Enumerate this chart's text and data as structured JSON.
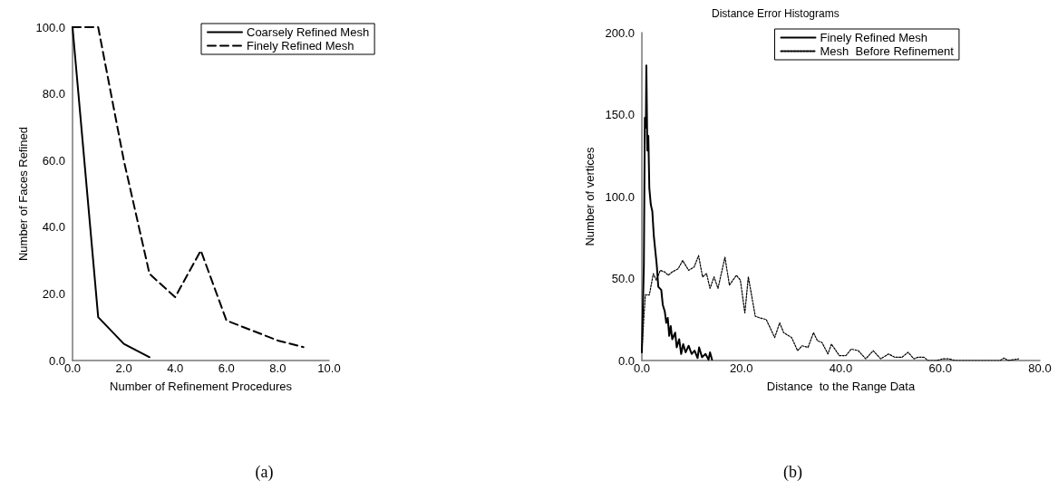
{
  "chart_data": [
    {
      "type": "line",
      "xlabel": "Number of Refinement Procedures",
      "ylabel": "Number of Faces Refined",
      "xlim": [
        0,
        10
      ],
      "ylim": [
        0,
        100
      ],
      "xticks": [
        {
          "value": 0,
          "label": "0.0"
        },
        {
          "value": 2,
          "label": "2.0"
        },
        {
          "value": 4,
          "label": "4.0"
        },
        {
          "value": 6,
          "label": "6.0"
        },
        {
          "value": 8,
          "label": "8.0"
        },
        {
          "value": 10,
          "label": "10.0"
        }
      ],
      "yticks": [
        {
          "value": 0,
          "label": "0.0"
        },
        {
          "value": 20,
          "label": "20.0"
        },
        {
          "value": 40,
          "label": "40.0"
        },
        {
          "value": 60,
          "label": "60.0"
        },
        {
          "value": 80,
          "label": "80.0"
        },
        {
          "value": 100,
          "label": "100.0"
        }
      ],
      "grid": false,
      "legend": "top right",
      "marker": "none",
      "annotations": [
        "(a)"
      ],
      "series": [
        {
          "name": "Coarsely Refined Mesh",
          "color": "#000000",
          "line_style": "solid",
          "x": [
            0,
            1,
            2,
            3
          ],
          "values": [
            100,
            13,
            5,
            1
          ]
        },
        {
          "name": "Finely Refined Mesh",
          "color": "#000000",
          "line_style": "dashed",
          "x": [
            0,
            1,
            2,
            3,
            4,
            5,
            6,
            7,
            8,
            9
          ],
          "values": [
            100,
            100,
            60,
            26,
            19,
            33,
            12,
            9,
            6,
            4
          ]
        }
      ]
    },
    {
      "type": "line",
      "title": "Distance Error Histograms",
      "xlabel": "Distance  to the Range Data",
      "ylabel": "Number of vertices",
      "xlim": [
        0,
        80
      ],
      "ylim": [
        0,
        200
      ],
      "xticks": [
        {
          "value": 0,
          "label": "0.0"
        },
        {
          "value": 20,
          "label": "20.0"
        },
        {
          "value": 40,
          "label": "40.0"
        },
        {
          "value": 60,
          "label": "60.0"
        },
        {
          "value": 80,
          "label": "80.0"
        }
      ],
      "yticks": [
        {
          "value": 0,
          "label": "0.0"
        },
        {
          "value": 50,
          "label": "50.0"
        },
        {
          "value": 100,
          "label": "100.0"
        },
        {
          "value": 150,
          "label": "150.0"
        },
        {
          "value": 200,
          "label": "200.0"
        }
      ],
      "grid": false,
      "legend": "top",
      "marker": "none",
      "annotations": [
        "(b)"
      ],
      "series": [
        {
          "name": "Finely Refined Mesh",
          "color": "#000000",
          "line_style": "solid",
          "x": [
            0,
            0.4,
            0.6,
            0.8,
            0.9,
            1.1,
            1.3,
            1.5,
            1.8,
            2.1,
            2.4,
            2.7,
            3,
            3.3,
            3.9,
            4.2,
            4.6,
            4.9,
            5.2,
            5.5,
            5.8,
            6.1,
            6.7,
            7,
            7.5,
            7.9,
            8.3,
            8.8,
            9.4,
            10,
            10.6,
            11.2,
            11.5,
            12.1,
            12.8,
            13.4,
            13.7,
            14.1
          ],
          "values": [
            5,
            58,
            148,
            142,
            180,
            128,
            137,
            105,
            95,
            91,
            76,
            67,
            58,
            45,
            43,
            34,
            30,
            23,
            26,
            15,
            21,
            13,
            17,
            8,
            13,
            4,
            10,
            5,
            9,
            4,
            6,
            1.5,
            8,
            2,
            4,
            0.5,
            5,
            0.5
          ]
        },
        {
          "name": "Mesh  Before Refinement",
          "color": "#000000",
          "line_style": "dotted",
          "x": [
            0,
            0.4,
            0.7,
            1.5,
            2.3,
            2.9,
            3.7,
            4.6,
            5.3,
            6.1,
            7.3,
            8.2,
            9.4,
            10.5,
            11.4,
            12.2,
            13,
            13.7,
            14.5,
            15.3,
            16.7,
            17.6,
            19,
            19.8,
            20.7,
            21.4,
            22.8,
            23.7,
            25,
            26.7,
            27.7,
            28.5,
            30.1,
            31.3,
            32.2,
            33.4,
            34.5,
            35.3,
            36.2,
            37.4,
            38.1,
            39.7,
            41,
            42.1,
            43.5,
            45,
            46.5,
            48,
            49.6,
            50.8,
            52.3,
            53.5,
            54.7,
            55.5,
            56.7,
            57.5,
            59.3,
            60.5,
            61.7,
            63,
            72,
            72.8,
            73.6,
            75.7
          ],
          "values": [
            5,
            26,
            40,
            40,
            53,
            49,
            55,
            54,
            52,
            54,
            56,
            61,
            55,
            57,
            64,
            51,
            53,
            44,
            51,
            44,
            63,
            46,
            52,
            49,
            29,
            51,
            27,
            26,
            25,
            14,
            23,
            17,
            14,
            6,
            9,
            8,
            17,
            12,
            11,
            4,
            10,
            3,
            3,
            7,
            6,
            1,
            6,
            1,
            4,
            2,
            2,
            5,
            1,
            2,
            2,
            0,
            0,
            1,
            1,
            0,
            0,
            1.5,
            0,
            1
          ]
        }
      ]
    }
  ]
}
